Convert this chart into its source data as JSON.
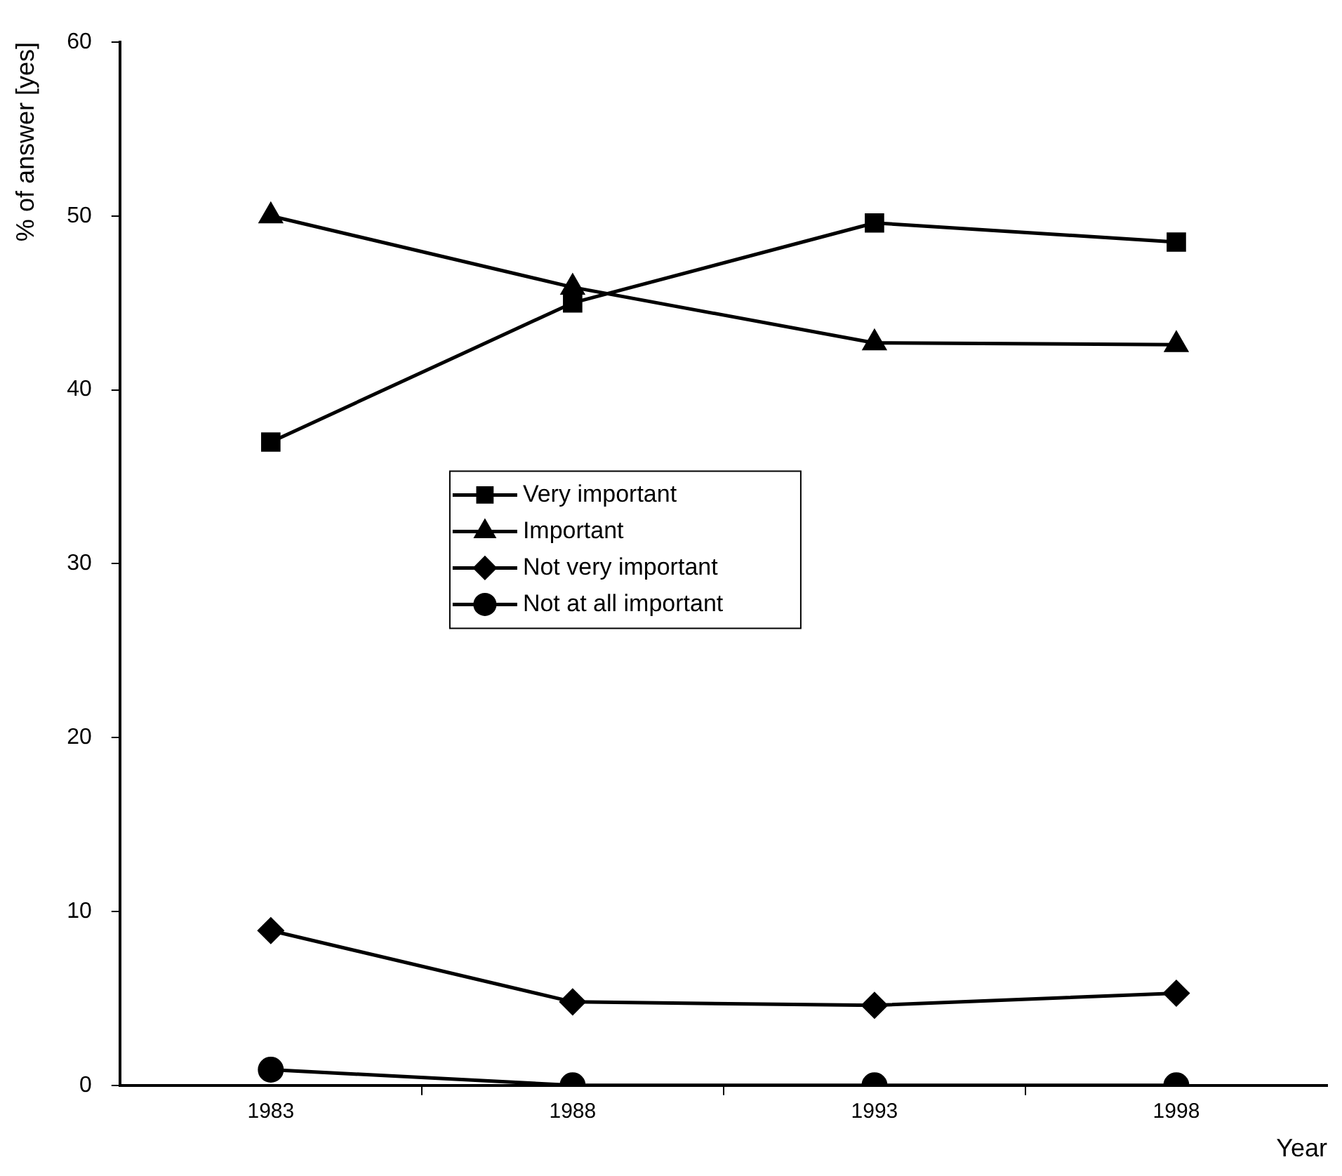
{
  "chart_data": {
    "type": "line",
    "xlabel": "Year",
    "ylabel": "% of answer [yes]",
    "x": [
      1983,
      1988,
      1993,
      1998
    ],
    "xlim": [
      1980.5,
      2000.5
    ],
    "xticks": [
      {
        "value": 1983,
        "label": "1983"
      },
      {
        "value": 1985.5,
        "label": null
      },
      {
        "value": 1988,
        "label": "1988"
      },
      {
        "value": 1990.5,
        "label": null
      },
      {
        "value": 1993,
        "label": "1993"
      },
      {
        "value": 1995.5,
        "label": null
      },
      {
        "value": 1998,
        "label": "1998"
      }
    ],
    "ylim": [
      0,
      60
    ],
    "yticks": [
      0,
      10,
      20,
      30,
      40,
      50,
      60
    ],
    "grid": false,
    "legend": "center",
    "line_style": "solid",
    "series": [
      {
        "name": "Very important",
        "color": "#000000",
        "marker": "square",
        "values": [
          37,
          45,
          49.6,
          48.5
        ]
      },
      {
        "name": "Important",
        "color": "#000000",
        "marker": "triangle",
        "values": [
          50,
          45.9,
          42.7,
          42.6
        ]
      },
      {
        "name": "Not very important",
        "color": "#000000",
        "marker": "diamond",
        "values": [
          8.9,
          4.8,
          4.6,
          5.3
        ]
      },
      {
        "name": "Not at all important",
        "color": "#000000",
        "marker": "circle",
        "values": [
          0.9,
          0,
          0,
          0
        ]
      }
    ]
  }
}
